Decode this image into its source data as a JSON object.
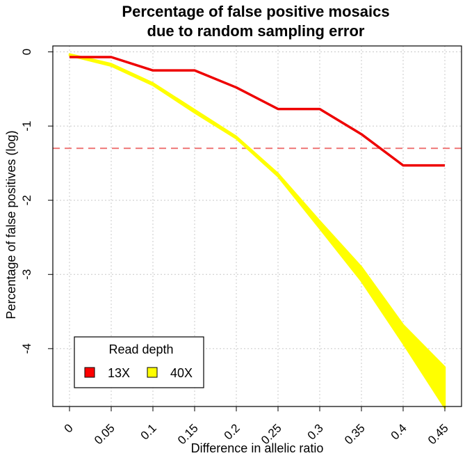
{
  "chart_data": {
    "type": "line",
    "title_line1": "Percentage of false positive mosaics",
    "title_line2": "due to random sampling error",
    "xlabel": "Difference in allelic ratio",
    "ylabel": "Percentage of false positives (log)",
    "x": [
      0,
      0.05,
      0.1,
      0.15,
      0.2,
      0.25,
      0.3,
      0.35,
      0.4,
      0.45
    ],
    "x_tick_labels": [
      "0",
      "0.05",
      "0.1",
      "0.15",
      "0.2",
      "0.25",
      "0.3",
      "0.35",
      "0.4",
      "0.45"
    ],
    "y_ticks": [
      0,
      -1,
      -2,
      -3,
      -4
    ],
    "y_tick_labels": [
      "0",
      "-1",
      "-2",
      "-3",
      "-4"
    ],
    "xlim": [
      -0.02,
      0.47
    ],
    "ylim": [
      -4.78,
      0.08
    ],
    "grid": true,
    "reference_line": {
      "y": -1.3,
      "color": "#f08080",
      "style": "dashed"
    },
    "legend": {
      "title": "Read depth",
      "placement": "bottom-left",
      "entries": [
        {
          "label": "13X",
          "color": "#ff0000"
        },
        {
          "label": "40X",
          "color": "#ffff00"
        }
      ]
    },
    "series": [
      {
        "name": "13X",
        "color": "#ee0000",
        "values": [
          -0.07,
          -0.07,
          -0.25,
          -0.25,
          -0.48,
          -0.77,
          -0.77,
          -1.11,
          -1.53,
          -1.53
        ]
      },
      {
        "name": "40X",
        "color": "#ffff00",
        "band_lower": [
          -0.05,
          -0.19,
          -0.45,
          -0.82,
          -1.17,
          -1.68,
          -2.38,
          -3.09,
          -3.93,
          -4.8
        ],
        "band_upper": [
          -0.03,
          -0.16,
          -0.42,
          -0.78,
          -1.14,
          -1.64,
          -2.28,
          -2.9,
          -3.68,
          -4.25
        ]
      }
    ]
  }
}
